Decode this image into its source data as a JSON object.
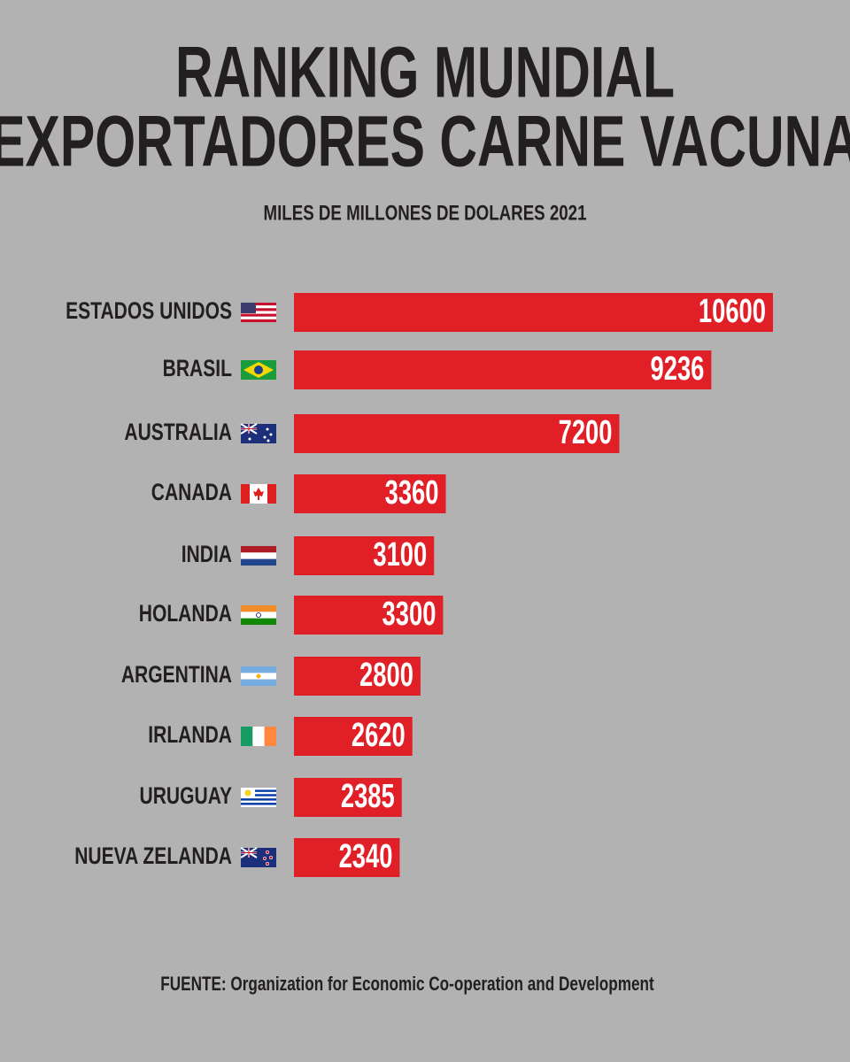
{
  "chart_data": {
    "type": "bar",
    "orientation": "horizontal",
    "title": [
      "RANKING MUNDIAL",
      "EXPORTADORES CARNE VACUNA"
    ],
    "subtitle": "MILES DE MILLONES DE DOLARES 2021",
    "categories": [
      "ESTADOS UNIDOS",
      "BRASIL",
      "AUSTRALIA",
      "CANADA",
      "INDIA",
      "HOLANDA",
      "ARGENTINA",
      "IRLANDA",
      "URUGUAY",
      "NUEVA ZELANDA"
    ],
    "values": [
      10600,
      9236,
      7200,
      3360,
      3100,
      3300,
      2800,
      2620,
      2385,
      2340
    ],
    "color": "#e01f26",
    "source": "FUENTE: Organization for Economic Co-operation and Development"
  }
}
